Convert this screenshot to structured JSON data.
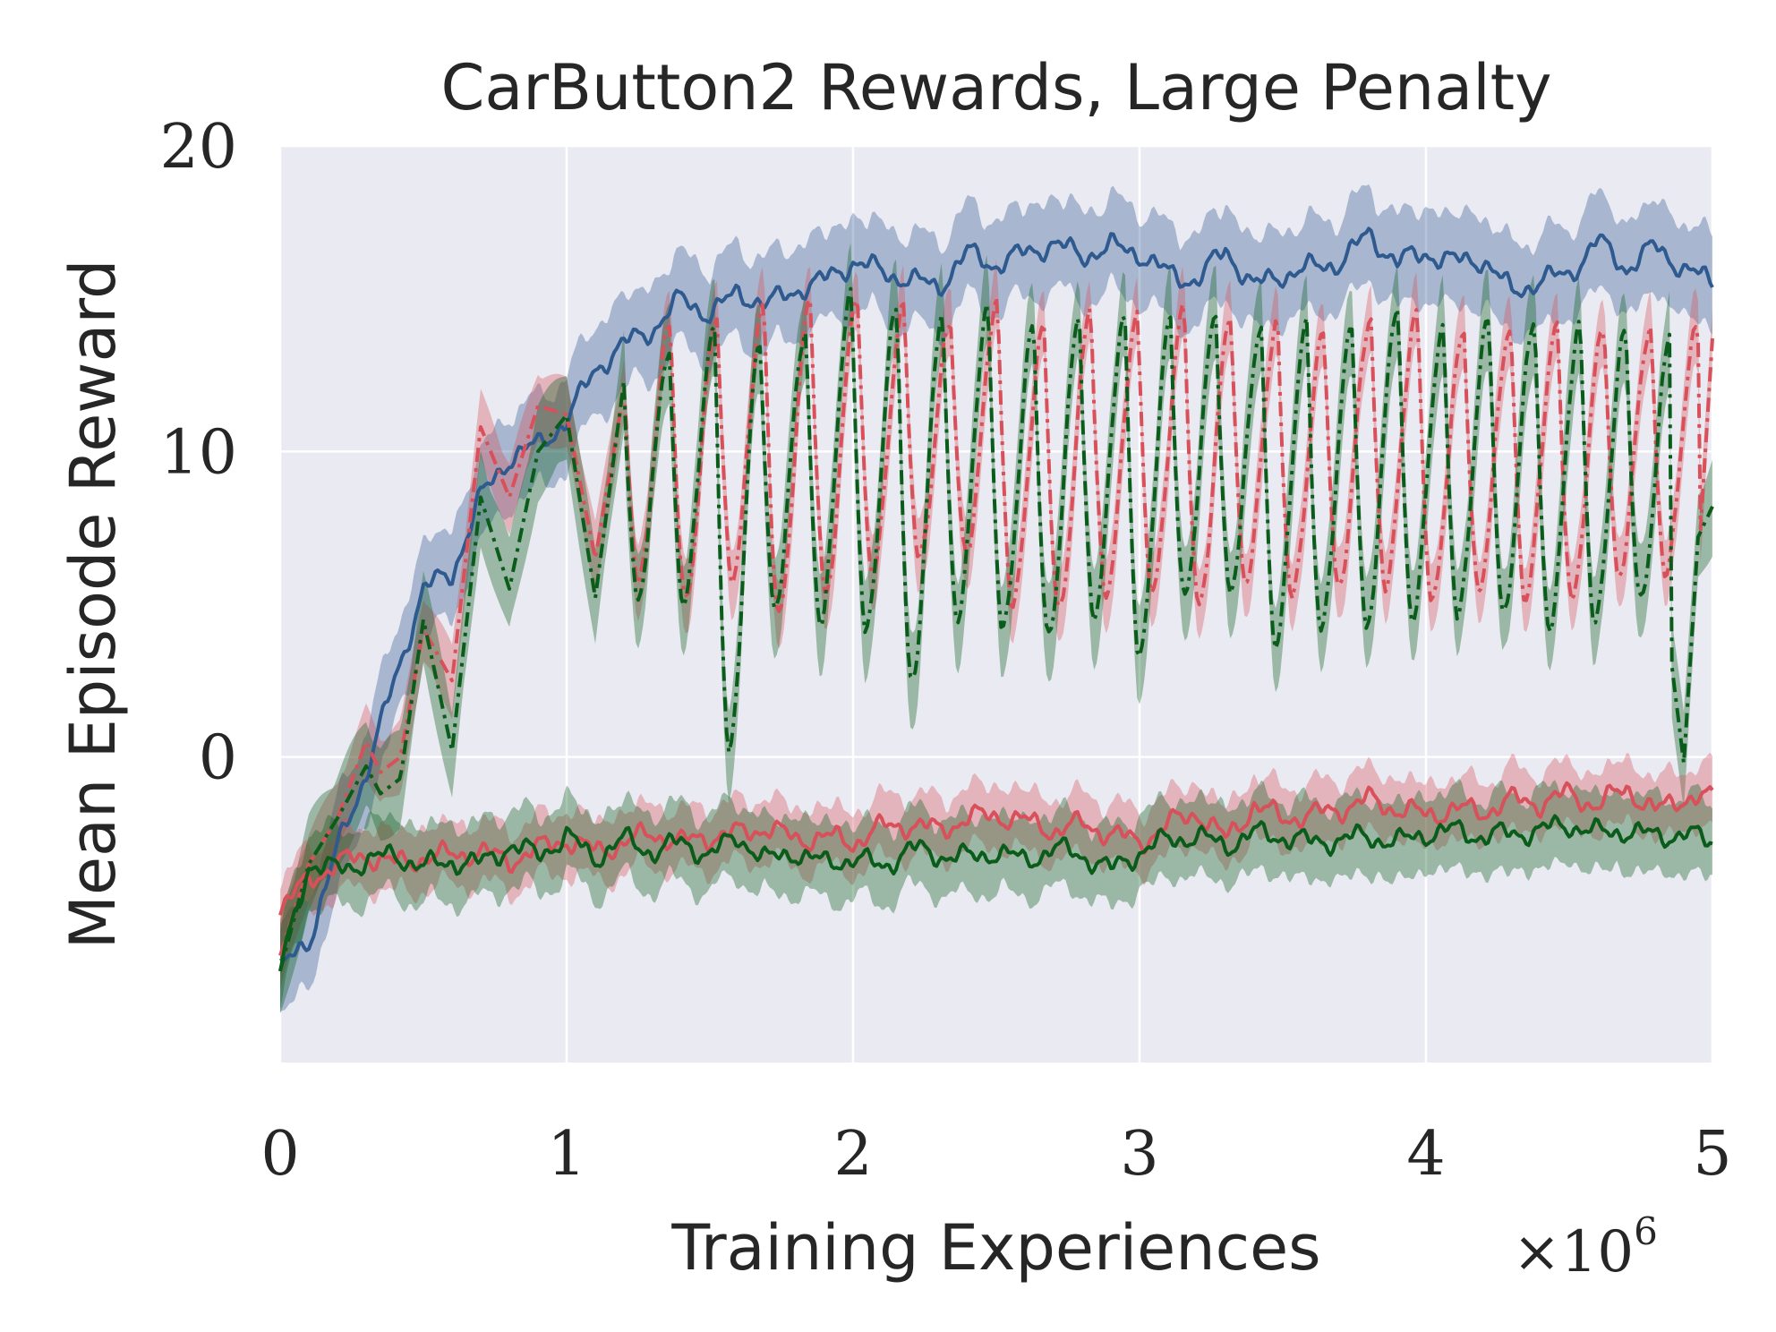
{
  "chart_data": {
    "type": "line",
    "title": "CarButton2 Rewards, Large Penalty",
    "xlabel": "Training Experiences",
    "ylabel": "Mean Episode Reward",
    "x_multiplier": {
      "base": "×10",
      "exponent": "6"
    },
    "xlim": [
      0,
      5
    ],
    "ylim": [
      -10,
      20
    ],
    "x_ticks": [
      0,
      1,
      2,
      3,
      4,
      5
    ],
    "x_tick_labels": [
      "0",
      "1",
      "2",
      "3",
      "4",
      "5"
    ],
    "y_ticks": [
      0,
      10,
      20
    ],
    "y_tick_labels": [
      "0",
      "10",
      "20"
    ],
    "grid": true,
    "colors": {
      "background": "#eaeaf2",
      "grid": "#ffffff",
      "blue": "#2e5a8f",
      "red": "#d8505a",
      "green": "#0a5c1a"
    },
    "series": [
      {
        "name": "blue-solid",
        "color": "#2e5a8f",
        "style": "solid",
        "kind": "smooth",
        "band": 1.2,
        "x": [
          0,
          0.1,
          0.2,
          0.3,
          0.4,
          0.5,
          0.6,
          0.7,
          0.8,
          0.9,
          1.0,
          1.1,
          1.2,
          1.3,
          1.4,
          1.5,
          1.6,
          1.7,
          1.8,
          1.9,
          2.0,
          2.1,
          2.2,
          2.3,
          2.4,
          2.5,
          2.6,
          2.7,
          2.8,
          2.9,
          3.0,
          3.1,
          3.2,
          3.3,
          3.4,
          3.5,
          3.6,
          3.7,
          3.8,
          3.9,
          4.0,
          4.1,
          4.2,
          4.3,
          4.4,
          4.5,
          4.6,
          4.7,
          4.8,
          4.9,
          5.0
        ],
        "y": [
          -7,
          -6,
          -3,
          -0.5,
          2.5,
          5.5,
          6,
          8.5,
          9.8,
          10.2,
          11,
          12.7,
          13.5,
          14,
          15,
          14.5,
          15.2,
          14.8,
          15.3,
          15.6,
          16.2,
          15.9,
          15.6,
          15.4,
          16.5,
          16.1,
          16.5,
          16.8,
          16.4,
          16.7,
          16.5,
          15.8,
          15.6,
          16.6,
          15.4,
          15.8,
          16,
          16.2,
          17.1,
          16.2,
          16.5,
          16.2,
          16.3,
          15.2,
          15.6,
          15.8,
          16.9,
          16,
          16.7,
          16,
          15.5
        ]
      },
      {
        "name": "red-dashdot",
        "color": "#d8505a",
        "style": "dashdot",
        "kind": "oscillating",
        "band": 0.9,
        "x": [
          0,
          0.1,
          0.2,
          0.3,
          0.35,
          0.42,
          0.5,
          0.6,
          0.7,
          0.8,
          0.9,
          1.0,
          1.1,
          1.2
        ],
        "y": [
          -6.5,
          -3.5,
          -2,
          0.5,
          -0.5,
          0,
          4.2,
          2.5,
          10.8,
          8.5,
          11.5,
          11.2,
          6.5,
          12
        ],
        "osc": {
          "start": 1.2,
          "end": 4.95,
          "period": 0.163,
          "peaks": [
            12.4,
            14,
            14.2,
            14.6,
            14.8,
            15,
            14.6,
            14.2,
            14.9,
            14.1,
            14.8,
            14.6,
            14.9,
            14.7,
            14.4,
            14.2,
            14.6,
            14.8,
            14.1,
            14.2,
            14.2,
            14.2,
            14.0
          ],
          "troughs": [
            6,
            5.3,
            6,
            4.8,
            5.4,
            6.1,
            6.5,
            6.6,
            4.9,
            4.6,
            5.1,
            5.2,
            4.7,
            5.5,
            5.1,
            5.3,
            5.5,
            5.0,
            5.4,
            5.2,
            5.2,
            6,
            6.2
          ]
        },
        "end_x": [
          4.95,
          5.0
        ],
        "end_y": [
          6.2,
          13.7
        ]
      },
      {
        "name": "green-dashdot",
        "color": "#0a5c1a",
        "style": "dashdot",
        "kind": "oscillating",
        "band": 1.2,
        "x": [
          0,
          0.1,
          0.2,
          0.3,
          0.35,
          0.42,
          0.5,
          0.6,
          0.7,
          0.8,
          0.9,
          1.0,
          1.1,
          1.2
        ],
        "y": [
          -7,
          -3.5,
          -2,
          -0.3,
          -1.2,
          -0.7,
          4.5,
          0.2,
          8.5,
          5.5,
          10,
          11.2,
          5.2,
          12.3
        ],
        "osc": {
          "start": 1.2,
          "end": 4.85,
          "period": 0.159,
          "peaks": [
            12.3,
            13.3,
            14,
            13.6,
            13.8,
            15,
            14.6,
            14.4,
            14.6,
            14.1,
            14.5,
            14.6,
            14.5,
            14.7,
            14.3,
            14.4,
            14.3,
            14.9,
            14,
            14.3,
            14.2,
            14,
            13.8
          ],
          "troughs": [
            5.2,
            5.1,
            0.3,
            5,
            4.6,
            4.3,
            2.5,
            4.6,
            4.2,
            3.8,
            4.4,
            3.1,
            5,
            5.2,
            3.5,
            4.1,
            4.2,
            4.6,
            4.8,
            4.8,
            4.4,
            4.6,
            5.2
          ]
        },
        "end_x": [
          4.85,
          4.9,
          4.95,
          5.0
        ],
        "end_y": [
          3.6,
          -0.2,
          7.2,
          8.2
        ]
      },
      {
        "name": "red-solid",
        "color": "#d8505a",
        "style": "solid",
        "kind": "smooth",
        "band": 0.8,
        "x": [
          0,
          0.1,
          0.2,
          0.3,
          0.4,
          0.5,
          0.6,
          0.7,
          0.8,
          0.9,
          1.0,
          1.1,
          1.2,
          1.3,
          1.4,
          1.5,
          1.6,
          1.7,
          1.8,
          1.9,
          2.0,
          2.1,
          2.2,
          2.3,
          2.4,
          2.5,
          2.6,
          2.7,
          2.8,
          2.9,
          3.0,
          3.1,
          3.2,
          3.3,
          3.4,
          3.5,
          3.6,
          3.7,
          3.8,
          3.9,
          4.0,
          4.1,
          4.2,
          4.3,
          4.4,
          4.5,
          4.6,
          4.7,
          4.8,
          4.9,
          5.0
        ],
        "y": [
          -5,
          -4,
          -3.5,
          -3.2,
          -3.5,
          -3.3,
          -3.2,
          -3.1,
          -3.4,
          -3,
          -2.7,
          -3.1,
          -2.8,
          -2.5,
          -2.8,
          -2.6,
          -2.5,
          -2.3,
          -2.7,
          -2.6,
          -2.8,
          -2.3,
          -2.2,
          -2.4,
          -2,
          -1.9,
          -2.1,
          -2.4,
          -2.2,
          -2.5,
          -2.8,
          -2.2,
          -1.8,
          -2.7,
          -1.6,
          -2,
          -1.9,
          -1.7,
          -1.4,
          -1.7,
          -1.9,
          -1.7,
          -1.8,
          -1.4,
          -1.5,
          -1.2,
          -1.6,
          -1,
          -1.8,
          -1.3,
          -1.4
        ]
      },
      {
        "name": "green-solid",
        "color": "#0a5c1a",
        "style": "solid",
        "kind": "smooth",
        "band": 1.0,
        "x": [
          0,
          0.1,
          0.2,
          0.3,
          0.4,
          0.5,
          0.6,
          0.7,
          0.8,
          0.9,
          1.0,
          1.1,
          1.2,
          1.3,
          1.4,
          1.5,
          1.6,
          1.7,
          1.8,
          1.9,
          2.0,
          2.1,
          2.2,
          2.3,
          2.4,
          2.5,
          2.6,
          2.7,
          2.8,
          2.9,
          3.0,
          3.1,
          3.2,
          3.3,
          3.4,
          3.5,
          3.6,
          3.7,
          3.8,
          3.9,
          4.0,
          4.1,
          4.2,
          4.3,
          4.4,
          4.5,
          4.6,
          4.7,
          4.8,
          4.9,
          5.0
        ],
        "y": [
          -7,
          -3.5,
          -3.7,
          -3.4,
          -3.2,
          -3.6,
          -3.4,
          -3.5,
          -2.9,
          -3.2,
          -2.6,
          -3.3,
          -2.7,
          -3.1,
          -2.8,
          -3.2,
          -2.6,
          -3.4,
          -3.1,
          -3.5,
          -3.3,
          -3.6,
          -3,
          -3.2,
          -3.3,
          -3.1,
          -3.4,
          -3,
          -3.2,
          -3.7,
          -3.1,
          -2.7,
          -2.6,
          -2.9,
          -2.5,
          -2.6,
          -2.8,
          -2.7,
          -2.6,
          -2.8,
          -2.5,
          -2.4,
          -2.6,
          -2.5,
          -2.4,
          -2.2,
          -2.5,
          -2.4,
          -2.6,
          -2.5,
          -2.8
        ]
      }
    ]
  }
}
